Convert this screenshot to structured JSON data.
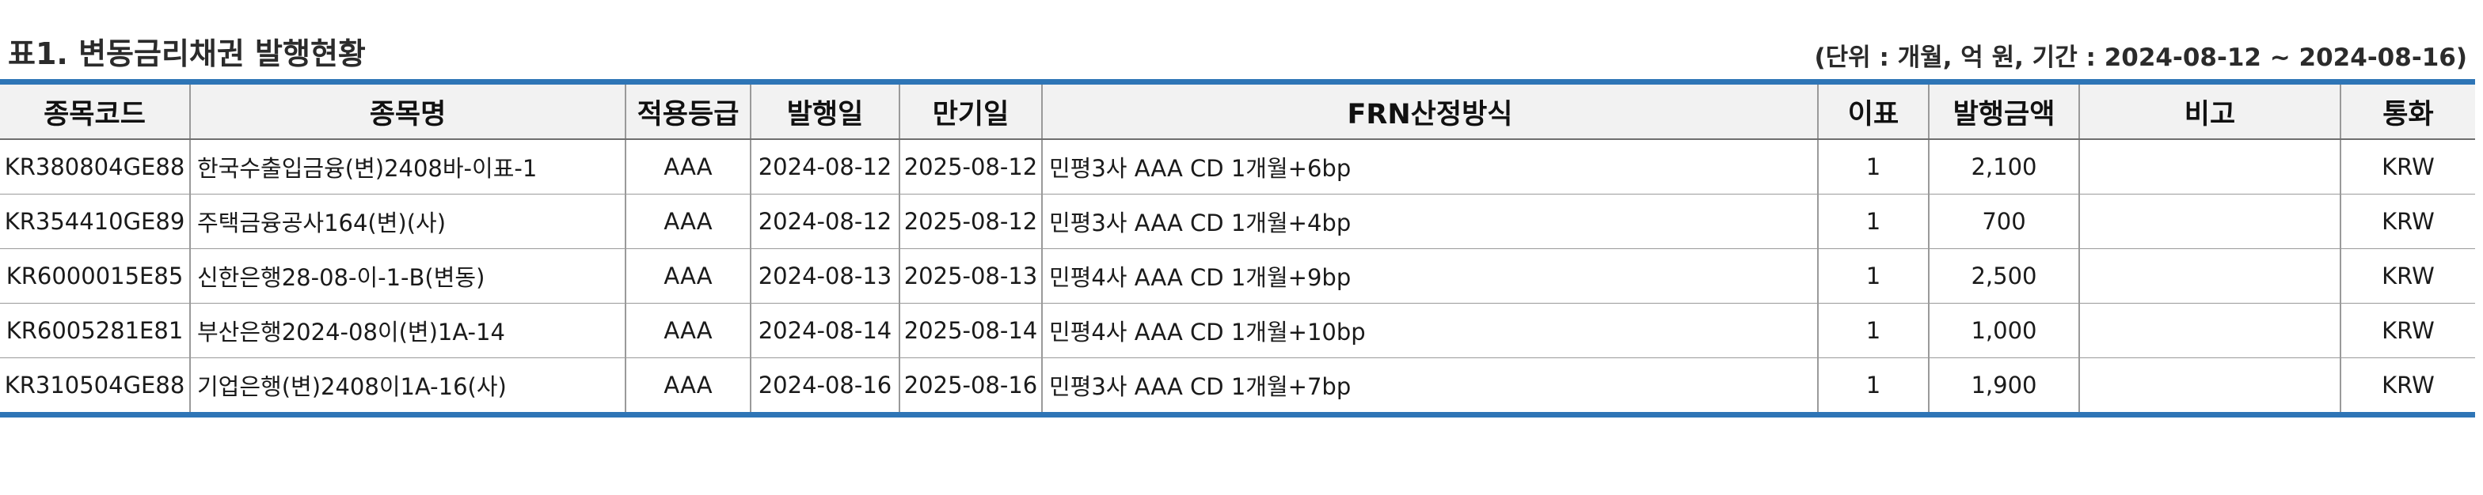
{
  "title": "표1. 변동금리채권 발행현황",
  "unit_note": "(단위 : 개월, 억 원, 기간 : 2024-08-12 ~ 2024-08-16)",
  "table": {
    "headers": [
      "종목코드",
      "종목명",
      "적용등급",
      "발행일",
      "만기일",
      "FRN산정방식",
      "이표",
      "발행금액",
      "비고",
      "통화"
    ],
    "rows": [
      [
        "KR380804GE88",
        "한국수출입금융(변)2408바-이표-1",
        "AAA",
        "2024-08-12",
        "2025-08-12",
        "민평3사 AAA CD 1개월+6bp",
        "1",
        "2,100",
        "",
        "KRW"
      ],
      [
        "KR354410GE89",
        "주택금융공사164(변)(사)",
        "AAA",
        "2024-08-12",
        "2025-08-12",
        "민평3사 AAA CD 1개월+4bp",
        "1",
        "700",
        "",
        "KRW"
      ],
      [
        "KR6000015E85",
        "신한은행28-08-이-1-B(변동)",
        "AAA",
        "2024-08-13",
        "2025-08-13",
        "민평4사 AAA CD 1개월+9bp",
        "1",
        "2,500",
        "",
        "KRW"
      ],
      [
        "KR6005281E81",
        "부산은행2024-08이(변)1A-14",
        "AAA",
        "2024-08-14",
        "2025-08-14",
        "민평4사 AAA CD 1개월+10bp",
        "1",
        "1,000",
        "",
        "KRW"
      ],
      [
        "KR310504GE88",
        "기업은행(변)2408이1A-16(사)",
        "AAA",
        "2024-08-16",
        "2025-08-16",
        "민평3사 AAA CD 1개월+7bp",
        "1",
        "1,900",
        "",
        "KRW"
      ]
    ]
  }
}
